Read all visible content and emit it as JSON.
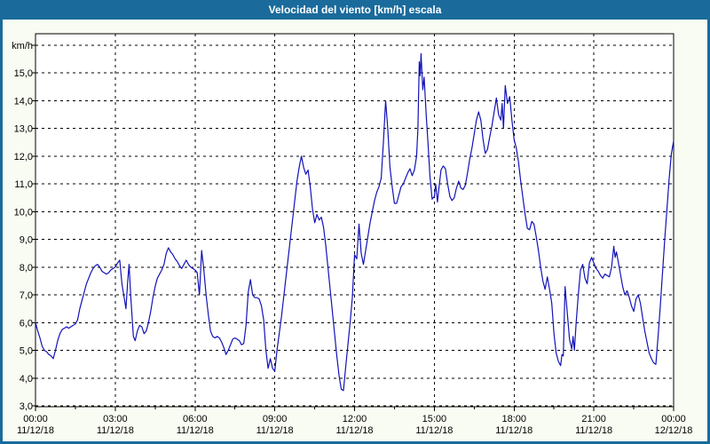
{
  "window": {
    "title": "Velocidad del viento [km/h] escala"
  },
  "colors": {
    "titlebar": "#1a6b9c",
    "border": "#1a6b9c",
    "background": "#f9fcf2",
    "plot_bg": "#ffffff",
    "line": "#1212b8",
    "grid": "#000000",
    "text": "#000000"
  },
  "chart_data": {
    "type": "line",
    "title": "Velocidad del viento [km/h] escala",
    "xlabel": "",
    "ylabel": "km/h",
    "ylim": [
      2.95,
      16.45
    ],
    "xlim_minutes": [
      0,
      1440
    ],
    "grid": "dashed",
    "legend": "none",
    "y_axis": {
      "unit": "km/h",
      "ticks": [
        {
          "v": 3,
          "label": "3,0"
        },
        {
          "v": 4,
          "label": "4,0"
        },
        {
          "v": 5,
          "label": "5,0"
        },
        {
          "v": 6,
          "label": "6,0"
        },
        {
          "v": 7,
          "label": "7,0"
        },
        {
          "v": 8,
          "label": "8,0"
        },
        {
          "v": 9,
          "label": "9,0"
        },
        {
          "v": 10,
          "label": "10,0"
        },
        {
          "v": 11,
          "label": "11,0"
        },
        {
          "v": 12,
          "label": "12,0"
        },
        {
          "v": 13,
          "label": "13,0"
        },
        {
          "v": 14,
          "label": "14,0"
        },
        {
          "v": 15,
          "label": "15,0"
        },
        {
          "v": 16,
          "label": "km/h"
        }
      ]
    },
    "x_axis": {
      "minor_step_minutes": 90,
      "ticks": [
        {
          "m": 0,
          "time": "00:00",
          "date": "11/12/18"
        },
        {
          "m": 180,
          "time": "03:00",
          "date": "11/12/18"
        },
        {
          "m": 360,
          "time": "06:00",
          "date": "11/12/18"
        },
        {
          "m": 540,
          "time": "09:00",
          "date": "11/12/18"
        },
        {
          "m": 720,
          "time": "12:00",
          "date": "11/12/18"
        },
        {
          "m": 900,
          "time": "15:00",
          "date": "11/12/18"
        },
        {
          "m": 1080,
          "time": "18:00",
          "date": "11/12/18"
        },
        {
          "m": 1260,
          "time": "21:00",
          "date": "11/12/18"
        },
        {
          "m": 1440,
          "time": "00:00",
          "date": "12/12/18"
        }
      ]
    },
    "series_name": "Velocidad del viento",
    "points": [
      [
        0,
        6.0
      ],
      [
        5,
        5.7
      ],
      [
        10,
        5.45
      ],
      [
        15,
        5.15
      ],
      [
        20,
        5.0
      ],
      [
        25,
        4.95
      ],
      [
        30,
        4.85
      ],
      [
        35,
        4.8
      ],
      [
        40,
        4.7
      ],
      [
        45,
        5.0
      ],
      [
        50,
        5.35
      ],
      [
        55,
        5.6
      ],
      [
        60,
        5.75
      ],
      [
        65,
        5.8
      ],
      [
        70,
        5.85
      ],
      [
        75,
        5.8
      ],
      [
        80,
        5.85
      ],
      [
        85,
        5.9
      ],
      [
        90,
        5.95
      ],
      [
        95,
        6.1
      ],
      [
        100,
        6.5
      ],
      [
        105,
        6.8
      ],
      [
        110,
        7.1
      ],
      [
        115,
        7.4
      ],
      [
        120,
        7.6
      ],
      [
        125,
        7.8
      ],
      [
        130,
        7.95
      ],
      [
        135,
        8.05
      ],
      [
        140,
        8.1
      ],
      [
        145,
        8.0
      ],
      [
        150,
        7.85
      ],
      [
        155,
        7.8
      ],
      [
        160,
        7.75
      ],
      [
        165,
        7.8
      ],
      [
        170,
        7.9
      ],
      [
        175,
        7.95
      ],
      [
        180,
        8.0
      ],
      [
        185,
        8.15
      ],
      [
        190,
        8.25
      ],
      [
        195,
        7.4
      ],
      [
        200,
        6.9
      ],
      [
        204,
        6.5
      ],
      [
        208,
        7.5
      ],
      [
        211,
        8.1
      ],
      [
        215,
        6.9
      ],
      [
        221,
        5.5
      ],
      [
        225,
        5.35
      ],
      [
        230,
        5.7
      ],
      [
        235,
        5.9
      ],
      [
        240,
        5.85
      ],
      [
        245,
        5.6
      ],
      [
        250,
        5.7
      ],
      [
        255,
        6.0
      ],
      [
        260,
        6.4
      ],
      [
        265,
        6.9
      ],
      [
        270,
        7.3
      ],
      [
        275,
        7.6
      ],
      [
        280,
        7.75
      ],
      [
        285,
        7.9
      ],
      [
        290,
        8.1
      ],
      [
        295,
        8.5
      ],
      [
        300,
        8.7
      ],
      [
        305,
        8.55
      ],
      [
        310,
        8.45
      ],
      [
        315,
        8.3
      ],
      [
        320,
        8.2
      ],
      [
        325,
        8.05
      ],
      [
        330,
        7.95
      ],
      [
        335,
        8.1
      ],
      [
        340,
        8.25
      ],
      [
        345,
        8.1
      ],
      [
        350,
        8.0
      ],
      [
        355,
        7.95
      ],
      [
        360,
        7.9
      ],
      [
        365,
        7.8
      ],
      [
        370,
        7.0
      ],
      [
        375,
        8.6
      ],
      [
        380,
        7.9
      ],
      [
        385,
        7.0
      ],
      [
        390,
        6.3
      ],
      [
        395,
        5.7
      ],
      [
        400,
        5.5
      ],
      [
        405,
        5.45
      ],
      [
        410,
        5.5
      ],
      [
        415,
        5.45
      ],
      [
        420,
        5.3
      ],
      [
        425,
        5.1
      ],
      [
        430,
        4.85
      ],
      [
        435,
        5.0
      ],
      [
        440,
        5.2
      ],
      [
        445,
        5.4
      ],
      [
        450,
        5.45
      ],
      [
        455,
        5.4
      ],
      [
        460,
        5.35
      ],
      [
        465,
        5.2
      ],
      [
        470,
        5.25
      ],
      [
        475,
        5.9
      ],
      [
        480,
        7.1
      ],
      [
        485,
        7.55
      ],
      [
        490,
        7.0
      ],
      [
        495,
        6.9
      ],
      [
        500,
        6.9
      ],
      [
        505,
        6.85
      ],
      [
        510,
        6.6
      ],
      [
        515,
        6.1
      ],
      [
        520,
        5.0
      ],
      [
        525,
        4.35
      ],
      [
        530,
        4.7
      ],
      [
        535,
        4.35
      ],
      [
        540,
        4.25
      ],
      [
        545,
        5.0
      ],
      [
        550,
        5.6
      ],
      [
        555,
        6.2
      ],
      [
        560,
        6.9
      ],
      [
        565,
        7.6
      ],
      [
        570,
        8.3
      ],
      [
        575,
        9.0
      ],
      [
        580,
        9.7
      ],
      [
        585,
        10.4
      ],
      [
        590,
        11.1
      ],
      [
        595,
        11.6
      ],
      [
        600,
        12.0
      ],
      [
        605,
        11.6
      ],
      [
        610,
        11.35
      ],
      [
        615,
        11.5
      ],
      [
        620,
        10.9
      ],
      [
        625,
        10.1
      ],
      [
        630,
        9.6
      ],
      [
        635,
        9.9
      ],
      [
        640,
        9.7
      ],
      [
        645,
        9.8
      ],
      [
        650,
        9.45
      ],
      [
        655,
        8.8
      ],
      [
        660,
        8.0
      ],
      [
        665,
        7.2
      ],
      [
        670,
        6.4
      ],
      [
        675,
        5.6
      ],
      [
        680,
        4.8
      ],
      [
        685,
        4.1
      ],
      [
        690,
        3.6
      ],
      [
        695,
        3.55
      ],
      [
        700,
        4.4
      ],
      [
        705,
        5.2
      ],
      [
        710,
        6.0
      ],
      [
        715,
        6.9
      ],
      [
        720,
        8.45
      ],
      [
        725,
        8.3
      ],
      [
        730,
        9.55
      ],
      [
        735,
        8.5
      ],
      [
        740,
        8.1
      ],
      [
        745,
        8.6
      ],
      [
        750,
        9.1
      ],
      [
        755,
        9.6
      ],
      [
        760,
        10.0
      ],
      [
        765,
        10.4
      ],
      [
        770,
        10.7
      ],
      [
        775,
        10.9
      ],
      [
        780,
        11.2
      ],
      [
        785,
        12.5
      ],
      [
        790,
        14.0
      ],
      [
        795,
        13.0
      ],
      [
        800,
        11.6
      ],
      [
        805,
        10.9
      ],
      [
        810,
        10.3
      ],
      [
        815,
        10.3
      ],
      [
        820,
        10.6
      ],
      [
        825,
        10.9
      ],
      [
        830,
        11.0
      ],
      [
        835,
        11.2
      ],
      [
        840,
        11.4
      ],
      [
        845,
        11.55
      ],
      [
        850,
        11.3
      ],
      [
        855,
        11.5
      ],
      [
        860,
        12.0
      ],
      [
        863,
        13.0
      ],
      [
        866,
        15.4
      ],
      [
        868,
        14.9
      ],
      [
        870,
        15.7
      ],
      [
        874,
        14.4
      ],
      [
        877,
        14.85
      ],
      [
        882,
        13.4
      ],
      [
        886,
        12.4
      ],
      [
        890,
        11.3
      ],
      [
        895,
        10.45
      ],
      [
        900,
        10.55
      ],
      [
        903,
        11.0
      ],
      [
        907,
        10.35
      ],
      [
        910,
        10.8
      ],
      [
        915,
        11.5
      ],
      [
        920,
        11.65
      ],
      [
        925,
        11.55
      ],
      [
        930,
        11.0
      ],
      [
        935,
        10.55
      ],
      [
        940,
        10.4
      ],
      [
        945,
        10.5
      ],
      [
        950,
        10.85
      ],
      [
        955,
        11.1
      ],
      [
        960,
        10.85
      ],
      [
        965,
        10.8
      ],
      [
        970,
        10.95
      ],
      [
        975,
        11.4
      ],
      [
        980,
        11.9
      ],
      [
        985,
        12.3
      ],
      [
        990,
        12.8
      ],
      [
        995,
        13.3
      ],
      [
        1000,
        13.6
      ],
      [
        1005,
        13.3
      ],
      [
        1010,
        12.6
      ],
      [
        1015,
        12.1
      ],
      [
        1020,
        12.25
      ],
      [
        1025,
        12.7
      ],
      [
        1030,
        13.1
      ],
      [
        1035,
        13.6
      ],
      [
        1040,
        14.1
      ],
      [
        1045,
        13.5
      ],
      [
        1050,
        13.3
      ],
      [
        1053,
        13.9
      ],
      [
        1056,
        13.0
      ],
      [
        1060,
        14.55
      ],
      [
        1065,
        13.9
      ],
      [
        1070,
        14.15
      ],
      [
        1075,
        13.3
      ],
      [
        1080,
        12.6
      ],
      [
        1085,
        12.3
      ],
      [
        1090,
        11.8
      ],
      [
        1095,
        11.1
      ],
      [
        1100,
        10.5
      ],
      [
        1105,
        9.9
      ],
      [
        1110,
        9.4
      ],
      [
        1115,
        9.35
      ],
      [
        1120,
        9.65
      ],
      [
        1125,
        9.55
      ],
      [
        1130,
        9.1
      ],
      [
        1135,
        8.6
      ],
      [
        1140,
        8.0
      ],
      [
        1145,
        7.5
      ],
      [
        1150,
        7.2
      ],
      [
        1155,
        7.65
      ],
      [
        1160,
        7.2
      ],
      [
        1165,
        6.7
      ],
      [
        1170,
        5.6
      ],
      [
        1175,
        4.9
      ],
      [
        1180,
        4.6
      ],
      [
        1185,
        4.45
      ],
      [
        1188,
        4.85
      ],
      [
        1191,
        4.8
      ],
      [
        1195,
        7.3
      ],
      [
        1200,
        6.35
      ],
      [
        1205,
        5.4
      ],
      [
        1210,
        5.05
      ],
      [
        1213,
        5.5
      ],
      [
        1216,
        5.0
      ],
      [
        1220,
        6.0
      ],
      [
        1225,
        7.0
      ],
      [
        1230,
        7.9
      ],
      [
        1235,
        8.1
      ],
      [
        1240,
        7.6
      ],
      [
        1245,
        7.4
      ],
      [
        1250,
        8.15
      ],
      [
        1255,
        8.35
      ],
      [
        1260,
        8.15
      ],
      [
        1265,
        7.95
      ],
      [
        1270,
        7.85
      ],
      [
        1275,
        7.7
      ],
      [
        1280,
        7.6
      ],
      [
        1285,
        7.75
      ],
      [
        1290,
        7.7
      ],
      [
        1295,
        7.65
      ],
      [
        1300,
        8.0
      ],
      [
        1305,
        8.75
      ],
      [
        1308,
        8.35
      ],
      [
        1311,
        8.55
      ],
      [
        1315,
        8.2
      ],
      [
        1320,
        7.75
      ],
      [
        1325,
        7.3
      ],
      [
        1330,
        7.0
      ],
      [
        1335,
        7.15
      ],
      [
        1340,
        6.9
      ],
      [
        1345,
        6.6
      ],
      [
        1350,
        6.4
      ],
      [
        1355,
        6.85
      ],
      [
        1360,
        7.0
      ],
      [
        1365,
        6.7
      ],
      [
        1370,
        6.2
      ],
      [
        1375,
        5.7
      ],
      [
        1380,
        5.3
      ],
      [
        1385,
        4.9
      ],
      [
        1390,
        4.7
      ],
      [
        1395,
        4.55
      ],
      [
        1400,
        4.5
      ],
      [
        1405,
        5.5
      ],
      [
        1410,
        6.6
      ],
      [
        1415,
        7.8
      ],
      [
        1420,
        9.0
      ],
      [
        1425,
        10.1
      ],
      [
        1430,
        11.2
      ],
      [
        1435,
        12.1
      ],
      [
        1440,
        12.55
      ]
    ]
  }
}
